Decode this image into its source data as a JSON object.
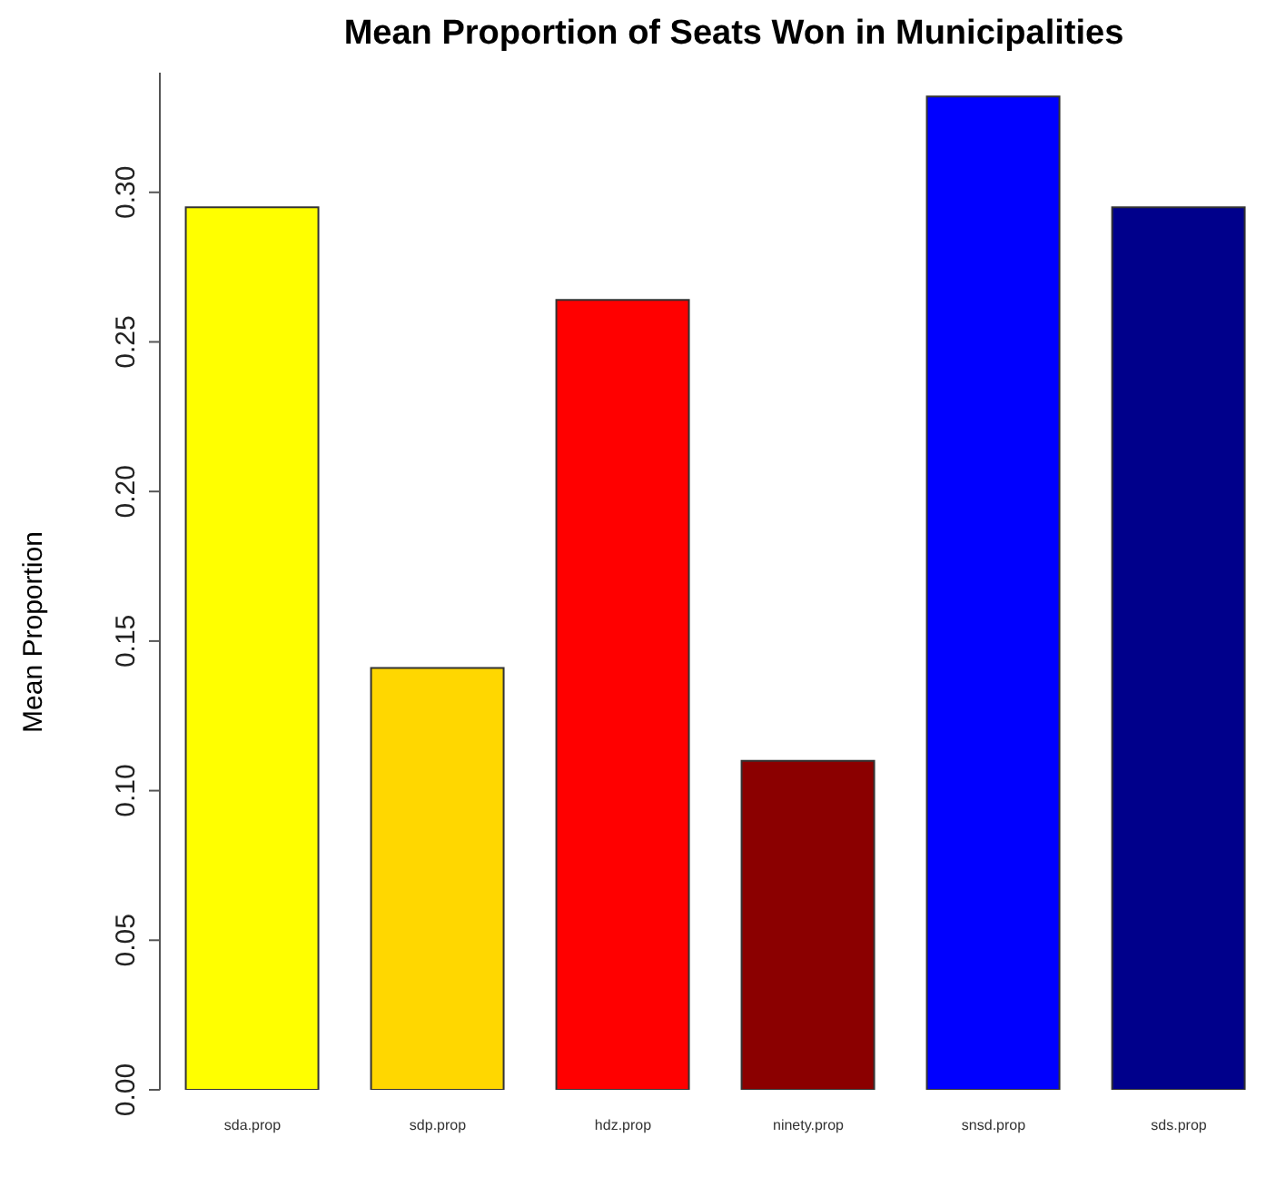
{
  "chart_data": {
    "type": "bar",
    "title": "Mean Proportion of Seats Won in Municipalities",
    "ylabel": "Mean Proportion",
    "categories": [
      "sda.prop",
      "sdp.prop",
      "hdz.prop",
      "ninety.prop",
      "snsd.prop",
      "sds.prop"
    ],
    "values": [
      0.295,
      0.141,
      0.264,
      0.11,
      0.332,
      0.295
    ],
    "colors": [
      "#ffff00",
      "#ffd700",
      "#ff0000",
      "#8b0000",
      "#0000ff",
      "#00008b"
    ],
    "ylim": [
      0,
      0.34
    ],
    "yticks": [
      {
        "value": 0,
        "label": "0.00"
      },
      {
        "value": 0.05,
        "label": "0.05"
      },
      {
        "value": 0.1,
        "label": "0.10"
      },
      {
        "value": 0.15,
        "label": "0.15"
      },
      {
        "value": 0.2,
        "label": "0.20"
      },
      {
        "value": 0.25,
        "label": "0.25"
      },
      {
        "value": 0.3,
        "label": "0.30"
      }
    ],
    "grid": false,
    "legend": false
  }
}
